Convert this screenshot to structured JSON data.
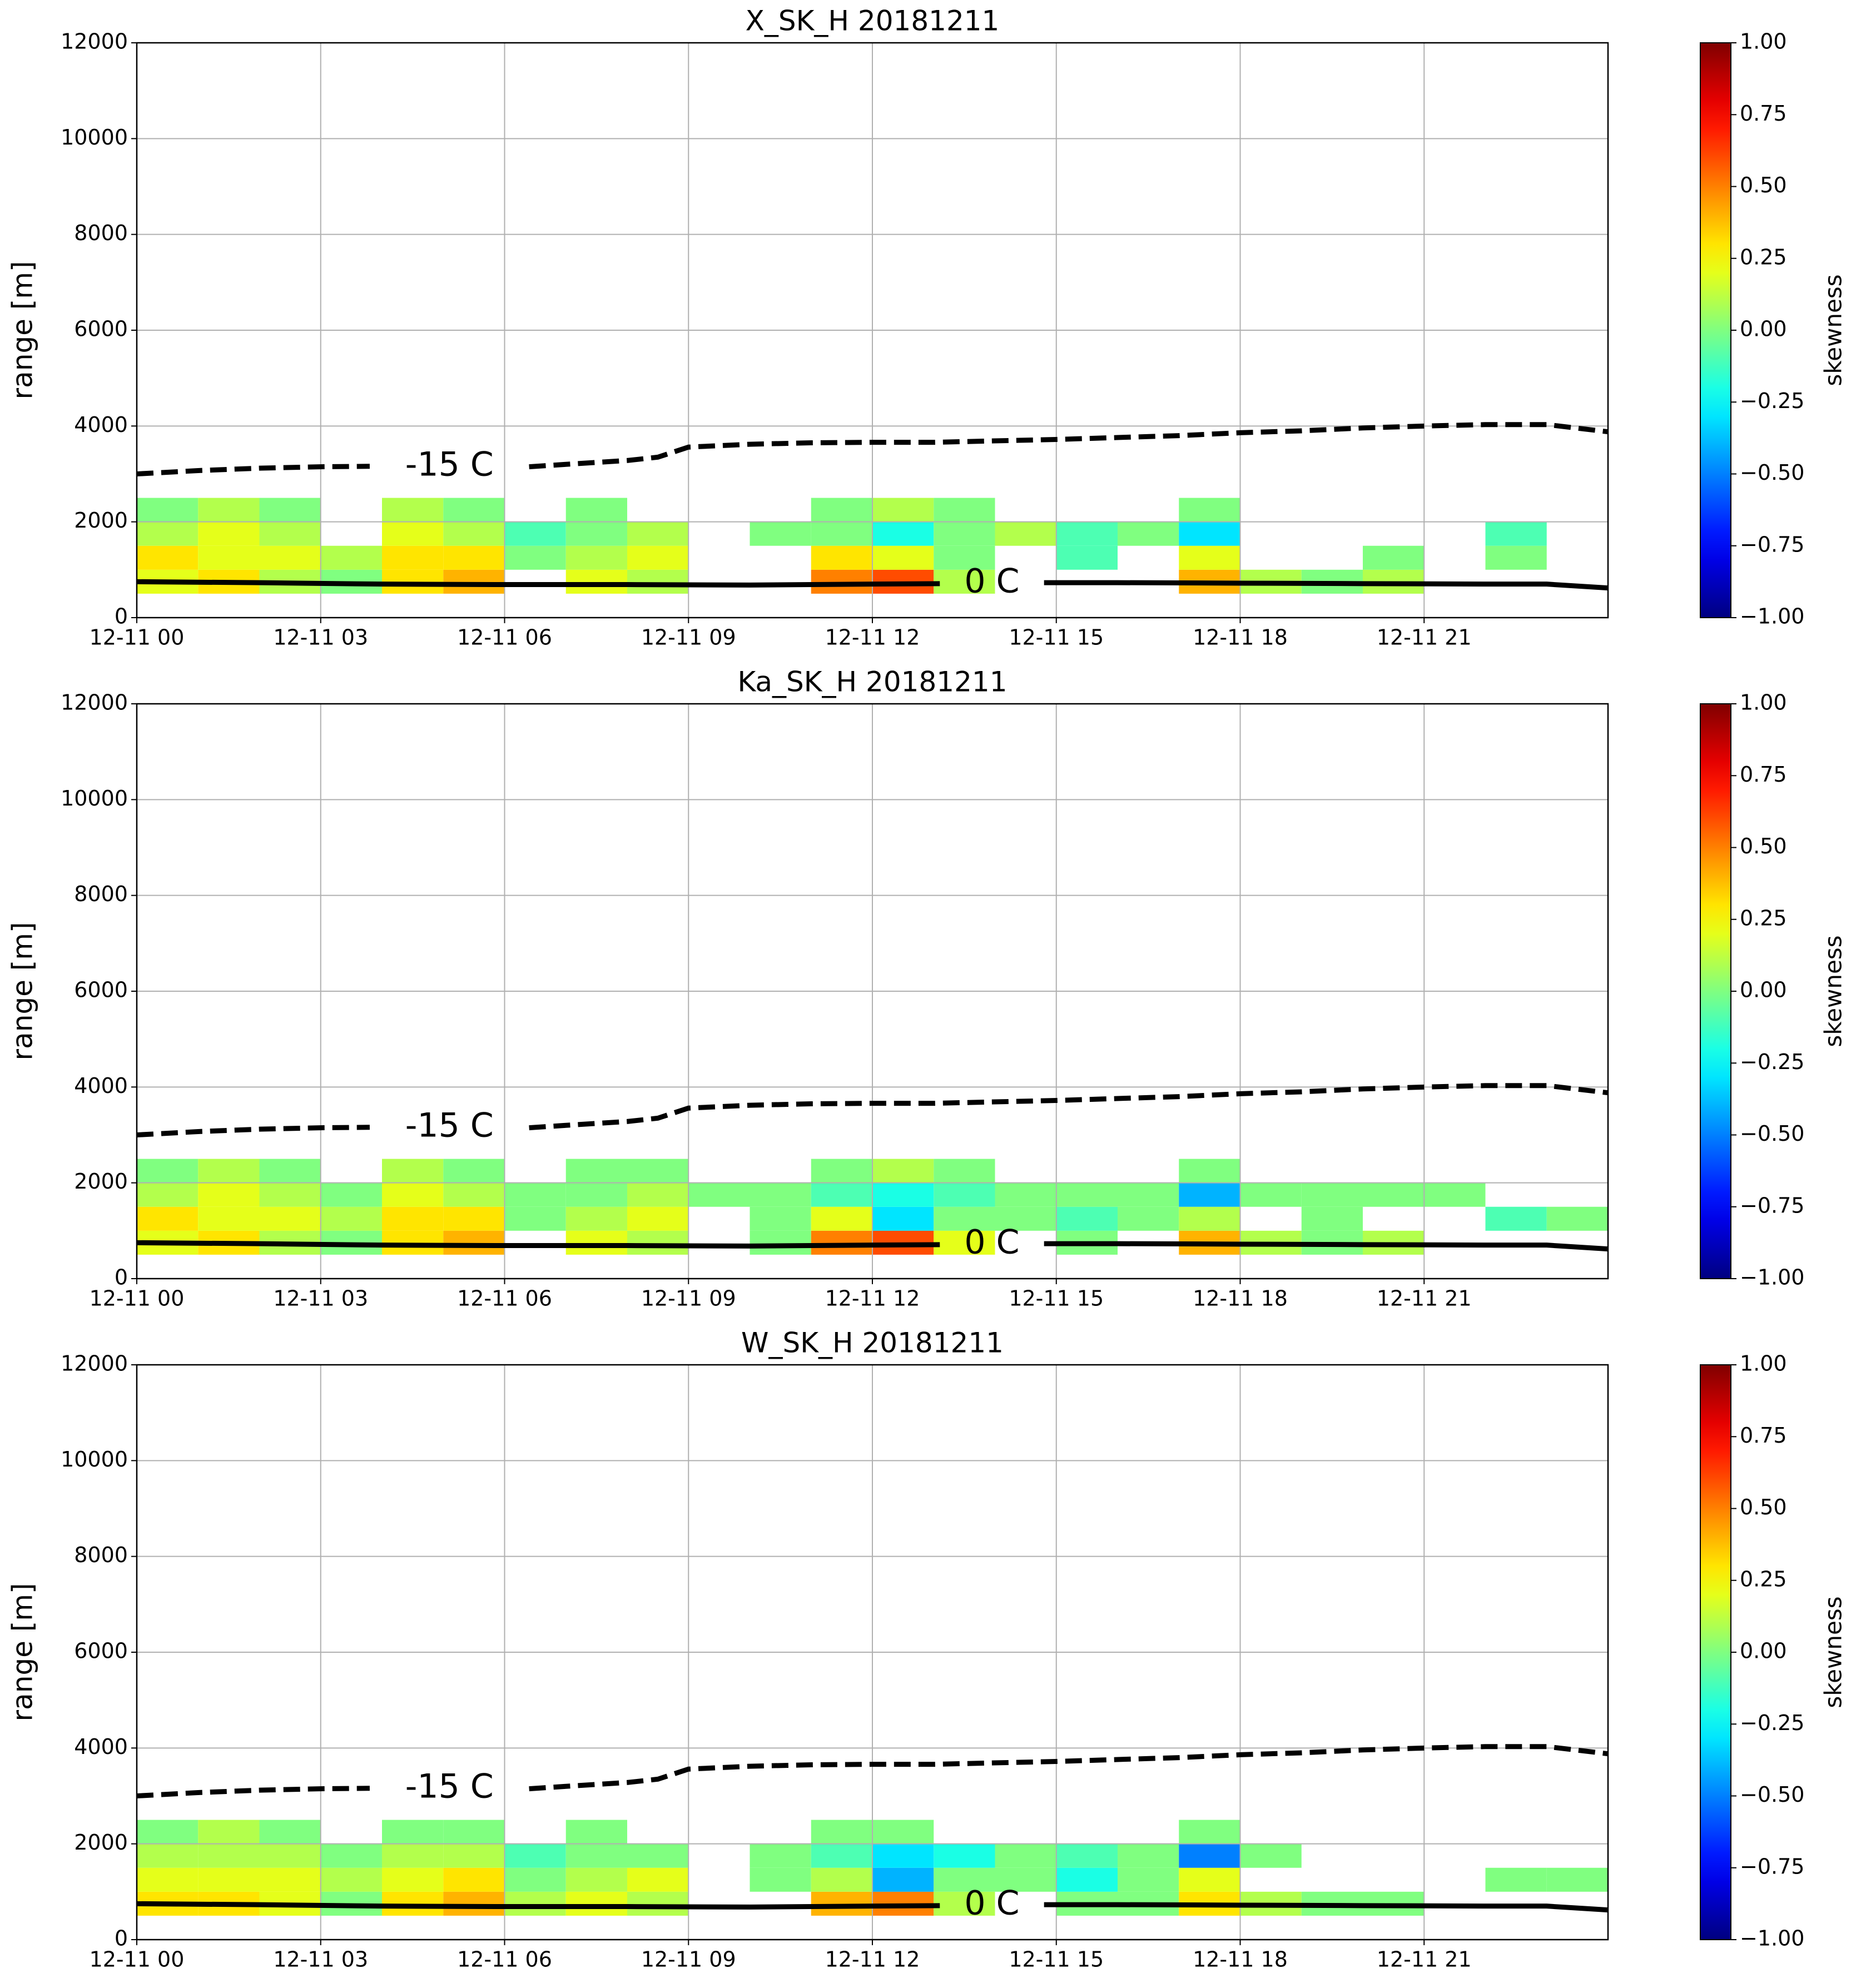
{
  "chart_data": [
    {
      "type": "heatmap",
      "title": "X_SK_H 20181211",
      "ylabel": "range [m]",
      "colorbar_label": "skewness",
      "colormap": "jet",
      "grid": true,
      "xlim": [
        0,
        24
      ],
      "xticks": [
        {
          "value": 0,
          "label": "12-11 00"
        },
        {
          "value": 3,
          "label": "12-11 03"
        },
        {
          "value": 6,
          "label": "12-11 06"
        },
        {
          "value": 9,
          "label": "12-11 09"
        },
        {
          "value": 12,
          "label": "12-11 12"
        },
        {
          "value": 15,
          "label": "12-11 15"
        },
        {
          "value": 18,
          "label": "12-11 18"
        },
        {
          "value": 21,
          "label": "12-11 21"
        }
      ],
      "ylim": [
        0,
        12000
      ],
      "yticks": [
        0,
        2000,
        4000,
        6000,
        8000,
        10000,
        12000
      ],
      "clim": [
        -1,
        1
      ],
      "cticks": [
        {
          "value": -1,
          "label": "−1.00"
        },
        {
          "value": -0.75,
          "label": "−0.75"
        },
        {
          "value": -0.5,
          "label": "−0.50"
        },
        {
          "value": -0.25,
          "label": "−0.25"
        },
        {
          "value": 0,
          "label": "0.00"
        },
        {
          "value": 0.25,
          "label": "0.25"
        },
        {
          "value": 0.5,
          "label": "0.50"
        },
        {
          "value": 0.75,
          "label": "0.75"
        },
        {
          "value": 1,
          "label": "1.00"
        }
      ],
      "x_bins": [
        0,
        1,
        2,
        3,
        4,
        5,
        6,
        7,
        8,
        9,
        10,
        11,
        12,
        13,
        14,
        15,
        16,
        17,
        18,
        19,
        20,
        21,
        22,
        23,
        24
      ],
      "y_bins": [
        500,
        1000,
        1500,
        2000,
        2500
      ],
      "values": [
        [
          0.2,
          0.3,
          0.1,
          0.0,
          0.3,
          0.4,
          null,
          0.2,
          0.1,
          null,
          null,
          0.5,
          0.6,
          0.1,
          null,
          null,
          null,
          0.4,
          0.1,
          0.0,
          0.1,
          null,
          null,
          null
        ],
        [
          0.3,
          0.2,
          0.2,
          0.1,
          0.3,
          0.3,
          0.0,
          0.1,
          0.2,
          null,
          null,
          0.3,
          0.2,
          0.0,
          null,
          -0.1,
          null,
          0.2,
          null,
          null,
          0.0,
          null,
          0.0,
          null
        ],
        [
          0.1,
          0.2,
          0.1,
          null,
          0.2,
          0.1,
          -0.1,
          0.0,
          0.1,
          null,
          0.0,
          0.0,
          -0.2,
          0.0,
          0.1,
          -0.1,
          0.0,
          -0.3,
          null,
          null,
          null,
          null,
          -0.1,
          null
        ],
        [
          0.0,
          0.1,
          0.0,
          null,
          0.1,
          0.0,
          null,
          0.0,
          null,
          null,
          null,
          0.0,
          0.1,
          0.0,
          null,
          null,
          null,
          0.0,
          null,
          null,
          null,
          null,
          null,
          null
        ]
      ],
      "series": [
        {
          "name": "-15 C",
          "color": "#000000",
          "dashed": true,
          "x": [
            0,
            1,
            2,
            3,
            3.8,
            5.1,
            6.4,
            7,
            8,
            8.5,
            9,
            10,
            11,
            12,
            13,
            14,
            15,
            16,
            17,
            18,
            19,
            20,
            21,
            22,
            23,
            24
          ],
          "values": [
            3000,
            3070,
            3120,
            3150,
            3160,
            null,
            3150,
            3200,
            3280,
            3350,
            3560,
            3620,
            3650,
            3660,
            3660,
            3690,
            3720,
            3760,
            3800,
            3860,
            3900,
            3960,
            4000,
            4030,
            4030,
            3880
          ]
        },
        {
          "name": "0 C",
          "color": "#000000",
          "dashed": false,
          "x": [
            0,
            2,
            4,
            6,
            8,
            10,
            12,
            13.1,
            13.9,
            14.8,
            16,
            18,
            20,
            22,
            23,
            24
          ],
          "values": [
            750,
            730,
            700,
            690,
            690,
            680,
            700,
            710,
            null,
            730,
            730,
            720,
            710,
            700,
            700,
            620
          ]
        }
      ]
    },
    {
      "type": "heatmap",
      "title": "Ka_SK_H 20181211",
      "ylabel": "range [m]",
      "colorbar_label": "skewness",
      "colormap": "jet",
      "grid": true,
      "xlim": [
        0,
        24
      ],
      "xticks": [
        {
          "value": 0,
          "label": "12-11 00"
        },
        {
          "value": 3,
          "label": "12-11 03"
        },
        {
          "value": 6,
          "label": "12-11 06"
        },
        {
          "value": 9,
          "label": "12-11 09"
        },
        {
          "value": 12,
          "label": "12-11 12"
        },
        {
          "value": 15,
          "label": "12-11 15"
        },
        {
          "value": 18,
          "label": "12-11 18"
        },
        {
          "value": 21,
          "label": "12-11 21"
        }
      ],
      "ylim": [
        0,
        12000
      ],
      "yticks": [
        0,
        2000,
        4000,
        6000,
        8000,
        10000,
        12000
      ],
      "clim": [
        -1,
        1
      ],
      "cticks": [
        {
          "value": -1,
          "label": "−1.00"
        },
        {
          "value": -0.75,
          "label": "−0.75"
        },
        {
          "value": -0.5,
          "label": "−0.50"
        },
        {
          "value": -0.25,
          "label": "−0.25"
        },
        {
          "value": 0,
          "label": "0.00"
        },
        {
          "value": 0.25,
          "label": "0.25"
        },
        {
          "value": 0.5,
          "label": "0.50"
        },
        {
          "value": 0.75,
          "label": "0.75"
        },
        {
          "value": 1,
          "label": "1.00"
        }
      ],
      "x_bins": [
        0,
        1,
        2,
        3,
        4,
        5,
        6,
        7,
        8,
        9,
        10,
        11,
        12,
        13,
        14,
        15,
        16,
        17,
        18,
        19,
        20,
        21,
        22,
        23,
        24
      ],
      "y_bins": [
        500,
        1000,
        1500,
        2000,
        2500
      ],
      "values": [
        [
          0.2,
          0.3,
          0.1,
          0.0,
          0.3,
          0.4,
          null,
          0.2,
          0.1,
          null,
          0.0,
          0.5,
          0.6,
          0.2,
          null,
          0.0,
          null,
          0.4,
          0.1,
          0.0,
          0.1,
          null,
          null,
          null
        ],
        [
          0.3,
          0.2,
          0.2,
          0.1,
          0.3,
          0.3,
          0.0,
          0.1,
          0.2,
          null,
          0.0,
          0.2,
          -0.3,
          0.0,
          0.0,
          -0.1,
          0.0,
          0.1,
          null,
          0.0,
          null,
          null,
          -0.1,
          0.0
        ],
        [
          0.1,
          0.2,
          0.1,
          0.0,
          0.2,
          0.1,
          0.0,
          0.0,
          0.1,
          0.0,
          0.0,
          -0.1,
          -0.2,
          -0.1,
          0.0,
          0.0,
          0.0,
          -0.4,
          0.0,
          0.0,
          0.0,
          0.0,
          null,
          null
        ],
        [
          0.0,
          0.1,
          0.0,
          null,
          0.1,
          0.0,
          null,
          0.0,
          0.0,
          null,
          null,
          0.0,
          0.1,
          0.0,
          null,
          null,
          null,
          0.0,
          null,
          null,
          null,
          null,
          null,
          null
        ]
      ],
      "series": [
        {
          "name": "-15 C",
          "color": "#000000",
          "dashed": true,
          "x": [
            0,
            1,
            2,
            3,
            3.8,
            5.1,
            6.4,
            7,
            8,
            8.5,
            9,
            10,
            11,
            12,
            13,
            14,
            15,
            16,
            17,
            18,
            19,
            20,
            21,
            22,
            23,
            24
          ],
          "values": [
            3000,
            3070,
            3120,
            3150,
            3160,
            null,
            3150,
            3200,
            3280,
            3350,
            3560,
            3620,
            3650,
            3660,
            3660,
            3690,
            3720,
            3760,
            3800,
            3860,
            3900,
            3960,
            4000,
            4030,
            4030,
            3880
          ]
        },
        {
          "name": "0 C",
          "color": "#000000",
          "dashed": false,
          "x": [
            0,
            2,
            4,
            6,
            8,
            10,
            12,
            13.1,
            13.9,
            14.8,
            16,
            18,
            20,
            22,
            23,
            24
          ],
          "values": [
            750,
            730,
            700,
            690,
            690,
            680,
            700,
            710,
            null,
            730,
            730,
            720,
            710,
            700,
            700,
            620
          ]
        }
      ]
    },
    {
      "type": "heatmap",
      "title": "W_SK_H 20181211",
      "ylabel": "range [m]",
      "colorbar_label": "skewness",
      "colormap": "jet",
      "grid": true,
      "xlim": [
        0,
        24
      ],
      "xticks": [
        {
          "value": 0,
          "label": "12-11 00"
        },
        {
          "value": 3,
          "label": "12-11 03"
        },
        {
          "value": 6,
          "label": "12-11 06"
        },
        {
          "value": 9,
          "label": "12-11 09"
        },
        {
          "value": 12,
          "label": "12-11 12"
        },
        {
          "value": 15,
          "label": "12-11 15"
        },
        {
          "value": 18,
          "label": "12-11 18"
        },
        {
          "value": 21,
          "label": "12-11 21"
        }
      ],
      "ylim": [
        0,
        12000
      ],
      "yticks": [
        0,
        2000,
        4000,
        6000,
        8000,
        10000,
        12000
      ],
      "clim": [
        -1,
        1
      ],
      "cticks": [
        {
          "value": -1,
          "label": "−1.00"
        },
        {
          "value": -0.75,
          "label": "−0.75"
        },
        {
          "value": -0.5,
          "label": "−0.50"
        },
        {
          "value": -0.25,
          "label": "−0.25"
        },
        {
          "value": 0,
          "label": "0.00"
        },
        {
          "value": 0.25,
          "label": "0.25"
        },
        {
          "value": 0.5,
          "label": "0.50"
        },
        {
          "value": 0.75,
          "label": "0.75"
        },
        {
          "value": 1,
          "label": "1.00"
        }
      ],
      "x_bins": [
        0,
        1,
        2,
        3,
        4,
        5,
        6,
        7,
        8,
        9,
        10,
        11,
        12,
        13,
        14,
        15,
        16,
        17,
        18,
        19,
        20,
        21,
        22,
        23,
        24
      ],
      "y_bins": [
        500,
        1000,
        1500,
        2000,
        2500
      ],
      "values": [
        [
          0.3,
          0.3,
          0.2,
          0.0,
          0.3,
          0.4,
          0.1,
          0.2,
          0.1,
          null,
          null,
          0.4,
          0.5,
          0.1,
          null,
          0.0,
          0.0,
          0.3,
          0.1,
          0.0,
          0.0,
          null,
          null,
          null
        ],
        [
          0.2,
          0.2,
          0.2,
          0.1,
          0.2,
          0.3,
          0.0,
          0.1,
          0.2,
          null,
          0.0,
          0.1,
          -0.4,
          0.0,
          0.0,
          -0.2,
          0.0,
          0.2,
          null,
          null,
          null,
          null,
          0.0,
          0.0
        ],
        [
          0.1,
          0.1,
          0.1,
          0.0,
          0.1,
          0.1,
          -0.1,
          0.0,
          0.0,
          null,
          0.0,
          -0.1,
          -0.3,
          -0.2,
          0.0,
          -0.1,
          0.0,
          -0.5,
          0.0,
          null,
          null,
          null,
          null,
          null
        ],
        [
          0.0,
          0.1,
          0.0,
          null,
          0.0,
          0.0,
          null,
          0.0,
          null,
          null,
          null,
          0.0,
          0.0,
          null,
          null,
          null,
          null,
          0.0,
          null,
          null,
          null,
          null,
          null,
          null
        ]
      ],
      "series": [
        {
          "name": "-15 C",
          "color": "#000000",
          "dashed": true,
          "x": [
            0,
            1,
            2,
            3,
            3.8,
            5.1,
            6.4,
            7,
            8,
            8.5,
            9,
            10,
            11,
            12,
            13,
            14,
            15,
            16,
            17,
            18,
            19,
            20,
            21,
            22,
            23,
            24
          ],
          "values": [
            3000,
            3070,
            3120,
            3150,
            3160,
            null,
            3150,
            3200,
            3280,
            3350,
            3560,
            3620,
            3650,
            3660,
            3660,
            3690,
            3720,
            3760,
            3800,
            3860,
            3900,
            3960,
            4000,
            4030,
            4030,
            3880
          ]
        },
        {
          "name": "0 C",
          "color": "#000000",
          "dashed": false,
          "x": [
            0,
            2,
            4,
            6,
            8,
            10,
            12,
            13.1,
            13.9,
            14.8,
            16,
            18,
            20,
            22,
            23,
            24
          ],
          "values": [
            750,
            730,
            700,
            690,
            690,
            680,
            700,
            710,
            null,
            730,
            730,
            720,
            710,
            700,
            700,
            620
          ]
        }
      ]
    }
  ]
}
